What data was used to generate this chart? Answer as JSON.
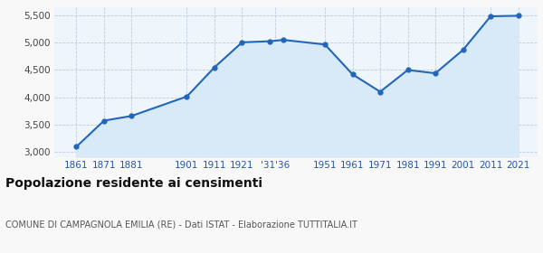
{
  "years": [
    1861,
    1871,
    1881,
    1901,
    1911,
    1921,
    1931,
    1936,
    1951,
    1961,
    1971,
    1981,
    1991,
    2001,
    2011,
    2021
  ],
  "population": [
    3087,
    3567,
    3654,
    4012,
    4549,
    5010,
    5030,
    5055,
    4970,
    4420,
    4100,
    4500,
    4440,
    4870,
    5490,
    5500
  ],
  "ylim": [
    2900,
    5650
  ],
  "yticks": [
    3000,
    3500,
    4000,
    4500,
    5000,
    5500
  ],
  "ytick_labels": [
    "3,000",
    "3,500",
    "4,000",
    "4,500",
    "5,000",
    "5,500"
  ],
  "xtick_positions": [
    1861,
    1871,
    1881,
    1901,
    1911,
    1921,
    1933,
    1951,
    1961,
    1971,
    1981,
    1991,
    2001,
    2011,
    2021
  ],
  "xtick_labels": [
    "1861",
    "1871",
    "1881",
    "1901",
    "1911",
    "1921",
    "'31'36",
    "1951",
    "1961",
    "1971",
    "1981",
    "1991",
    "2001",
    "2011",
    "2021"
  ],
  "xlim": [
    1853,
    2028
  ],
  "line_color": "#2266bb",
  "fill_color": "#d8eaf8",
  "marker_color": "#2266bb",
  "title": "Popolazione residente ai censimenti",
  "subtitle": "COMUNE DI CAMPAGNOLA EMILIA (RE) - Dati ISTAT - Elaborazione TUTTITALIA.IT",
  "bg_color": "#f8f8f8",
  "plot_bg_color": "#eef5fb",
  "grid_color": "#bbccdd",
  "title_fontsize": 10,
  "subtitle_fontsize": 7,
  "tick_fontsize": 7.5
}
